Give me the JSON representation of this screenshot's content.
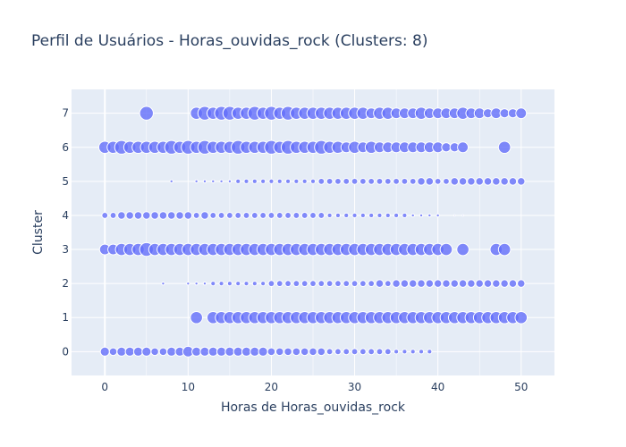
{
  "chart_data": {
    "type": "scatter",
    "title": "Perfil de Usuários - Horas_ouvidas_rock (Clusters: 8)",
    "xlabel": "Horas de Horas_ouvidas_rock",
    "ylabel": "Cluster",
    "xlim": [
      -4,
      54
    ],
    "ylim": [
      -0.7,
      7.7
    ],
    "x_ticks": [
      0,
      10,
      20,
      30,
      40,
      50
    ],
    "y_ticks": [
      0,
      1,
      2,
      3,
      4,
      5,
      6,
      7
    ],
    "grid": true,
    "legend": "none",
    "colors": {
      "marker_fill": "#636efa",
      "marker_stroke": "#ffffff",
      "plot_bg": "#e5ecf6",
      "grid": "#ffffff",
      "text": "#2a3f5f"
    },
    "series": [
      {
        "cluster": 7,
        "x": [
          5,
          11,
          12,
          13,
          14,
          15,
          16,
          17,
          18,
          19,
          20,
          21,
          22,
          23,
          24,
          25,
          26,
          27,
          28,
          29,
          30,
          31,
          32,
          33,
          34,
          35,
          36,
          37,
          38,
          39,
          40,
          41,
          42,
          43,
          44,
          45,
          46,
          47,
          48,
          49,
          50
        ],
        "size": [
          9,
          8,
          9,
          8,
          9,
          9,
          8,
          8,
          9,
          8,
          9,
          8,
          9,
          8,
          8,
          8,
          8,
          8,
          8,
          8,
          8,
          8,
          7,
          8,
          8,
          7,
          7,
          7,
          8,
          7,
          7,
          7,
          7,
          8,
          7,
          7,
          6,
          7,
          6,
          6,
          7
        ]
      },
      {
        "cluster": 6,
        "x": [
          0,
          1,
          2,
          3,
          4,
          5,
          6,
          7,
          8,
          9,
          10,
          11,
          12,
          13,
          14,
          15,
          16,
          17,
          18,
          19,
          20,
          21,
          22,
          23,
          24,
          25,
          26,
          27,
          28,
          29,
          30,
          31,
          32,
          33,
          34,
          35,
          36,
          37,
          38,
          39,
          40,
          41,
          42,
          43,
          48
        ],
        "size": [
          8,
          8,
          9,
          8,
          8,
          8,
          8,
          8,
          9,
          8,
          9,
          8,
          9,
          8,
          8,
          8,
          9,
          8,
          8,
          8,
          9,
          8,
          9,
          8,
          8,
          8,
          9,
          8,
          8,
          7,
          8,
          7,
          8,
          7,
          7,
          7,
          7,
          7,
          7,
          7,
          7,
          6,
          6,
          7,
          8
        ]
      },
      {
        "cluster": 5,
        "x": [
          8,
          11,
          12,
          13,
          14,
          15,
          16,
          17,
          18,
          19,
          20,
          21,
          22,
          23,
          24,
          25,
          26,
          27,
          28,
          29,
          30,
          31,
          32,
          33,
          34,
          35,
          36,
          37,
          38,
          39,
          40,
          41,
          42,
          43,
          44,
          45,
          46,
          47,
          48,
          49,
          50
        ],
        "size": [
          2,
          2,
          2,
          2,
          2,
          2,
          3,
          3,
          3,
          3,
          3,
          3,
          3,
          3,
          3,
          3,
          4,
          4,
          4,
          4,
          4,
          4,
          4,
          4,
          4,
          4,
          4,
          4,
          5,
          5,
          4,
          4,
          5,
          5,
          5,
          5,
          5,
          5,
          5,
          5,
          5
        ]
      },
      {
        "cluster": 4,
        "x": [
          0,
          1,
          2,
          3,
          4,
          5,
          6,
          7,
          8,
          9,
          10,
          11,
          12,
          13,
          14,
          15,
          16,
          17,
          18,
          19,
          20,
          21,
          22,
          23,
          24,
          25,
          26,
          27,
          28,
          29,
          30,
          31,
          32,
          33,
          34,
          35,
          36,
          37,
          38,
          39,
          40,
          42,
          43
        ],
        "size": [
          4,
          4,
          5,
          5,
          5,
          5,
          5,
          5,
          5,
          5,
          5,
          4,
          5,
          4,
          4,
          4,
          4,
          4,
          4,
          4,
          4,
          4,
          4,
          4,
          4,
          4,
          4,
          3,
          3,
          3,
          3,
          3,
          3,
          3,
          3,
          3,
          3,
          2,
          2,
          2,
          2,
          1,
          1
        ]
      },
      {
        "cluster": 3,
        "x": [
          0,
          1,
          2,
          3,
          4,
          5,
          6,
          7,
          8,
          9,
          10,
          11,
          12,
          13,
          14,
          15,
          16,
          17,
          18,
          19,
          20,
          21,
          22,
          23,
          24,
          25,
          26,
          27,
          28,
          29,
          30,
          31,
          32,
          33,
          34,
          35,
          36,
          37,
          38,
          39,
          40,
          41,
          43,
          47,
          48
        ],
        "size": [
          7,
          7,
          8,
          8,
          8,
          9,
          8,
          8,
          8,
          8,
          8,
          8,
          8,
          8,
          8,
          8,
          8,
          8,
          8,
          8,
          8,
          8,
          8,
          8,
          8,
          8,
          8,
          8,
          8,
          8,
          8,
          8,
          8,
          8,
          8,
          8,
          8,
          8,
          8,
          8,
          8,
          8,
          8,
          8,
          8
        ]
      },
      {
        "cluster": 2,
        "x": [
          7,
          10,
          11,
          12,
          13,
          14,
          15,
          16,
          17,
          18,
          19,
          20,
          21,
          22,
          23,
          24,
          25,
          26,
          27,
          28,
          29,
          30,
          31,
          32,
          33,
          34,
          35,
          36,
          37,
          38,
          39,
          40,
          41,
          42,
          43,
          44,
          45,
          46,
          47,
          48,
          49,
          50
        ],
        "size": [
          2,
          2,
          2,
          2,
          3,
          3,
          3,
          3,
          3,
          3,
          3,
          4,
          4,
          4,
          4,
          4,
          4,
          4,
          4,
          4,
          4,
          4,
          4,
          4,
          5,
          4,
          5,
          5,
          5,
          5,
          5,
          5,
          5,
          5,
          5,
          5,
          5,
          5,
          5,
          5,
          5,
          5
        ]
      },
      {
        "cluster": 1,
        "x": [
          11,
          13,
          14,
          15,
          16,
          17,
          18,
          19,
          20,
          21,
          22,
          23,
          24,
          25,
          26,
          27,
          28,
          29,
          30,
          31,
          32,
          33,
          34,
          35,
          36,
          37,
          38,
          39,
          40,
          41,
          42,
          43,
          44,
          45,
          46,
          47,
          48,
          49,
          50
        ],
        "size": [
          8,
          8,
          8,
          8,
          8,
          8,
          8,
          8,
          8,
          8,
          8,
          8,
          8,
          8,
          8,
          8,
          8,
          8,
          8,
          8,
          8,
          8,
          8,
          8,
          8,
          8,
          8,
          8,
          8,
          8,
          8,
          8,
          8,
          8,
          8,
          8,
          8,
          8,
          8
        ]
      },
      {
        "cluster": 0,
        "x": [
          0,
          1,
          2,
          3,
          4,
          5,
          6,
          7,
          8,
          9,
          10,
          11,
          12,
          13,
          14,
          15,
          16,
          17,
          18,
          19,
          20,
          21,
          22,
          23,
          24,
          25,
          26,
          27,
          28,
          29,
          30,
          31,
          32,
          33,
          34,
          35,
          36,
          37,
          38,
          39
        ],
        "size": [
          6,
          5,
          6,
          6,
          6,
          6,
          5,
          5,
          6,
          6,
          7,
          6,
          6,
          6,
          6,
          6,
          6,
          6,
          6,
          6,
          5,
          5,
          5,
          5,
          5,
          5,
          5,
          4,
          4,
          4,
          4,
          4,
          4,
          4,
          4,
          3,
          3,
          3,
          3,
          3
        ]
      }
    ]
  }
}
